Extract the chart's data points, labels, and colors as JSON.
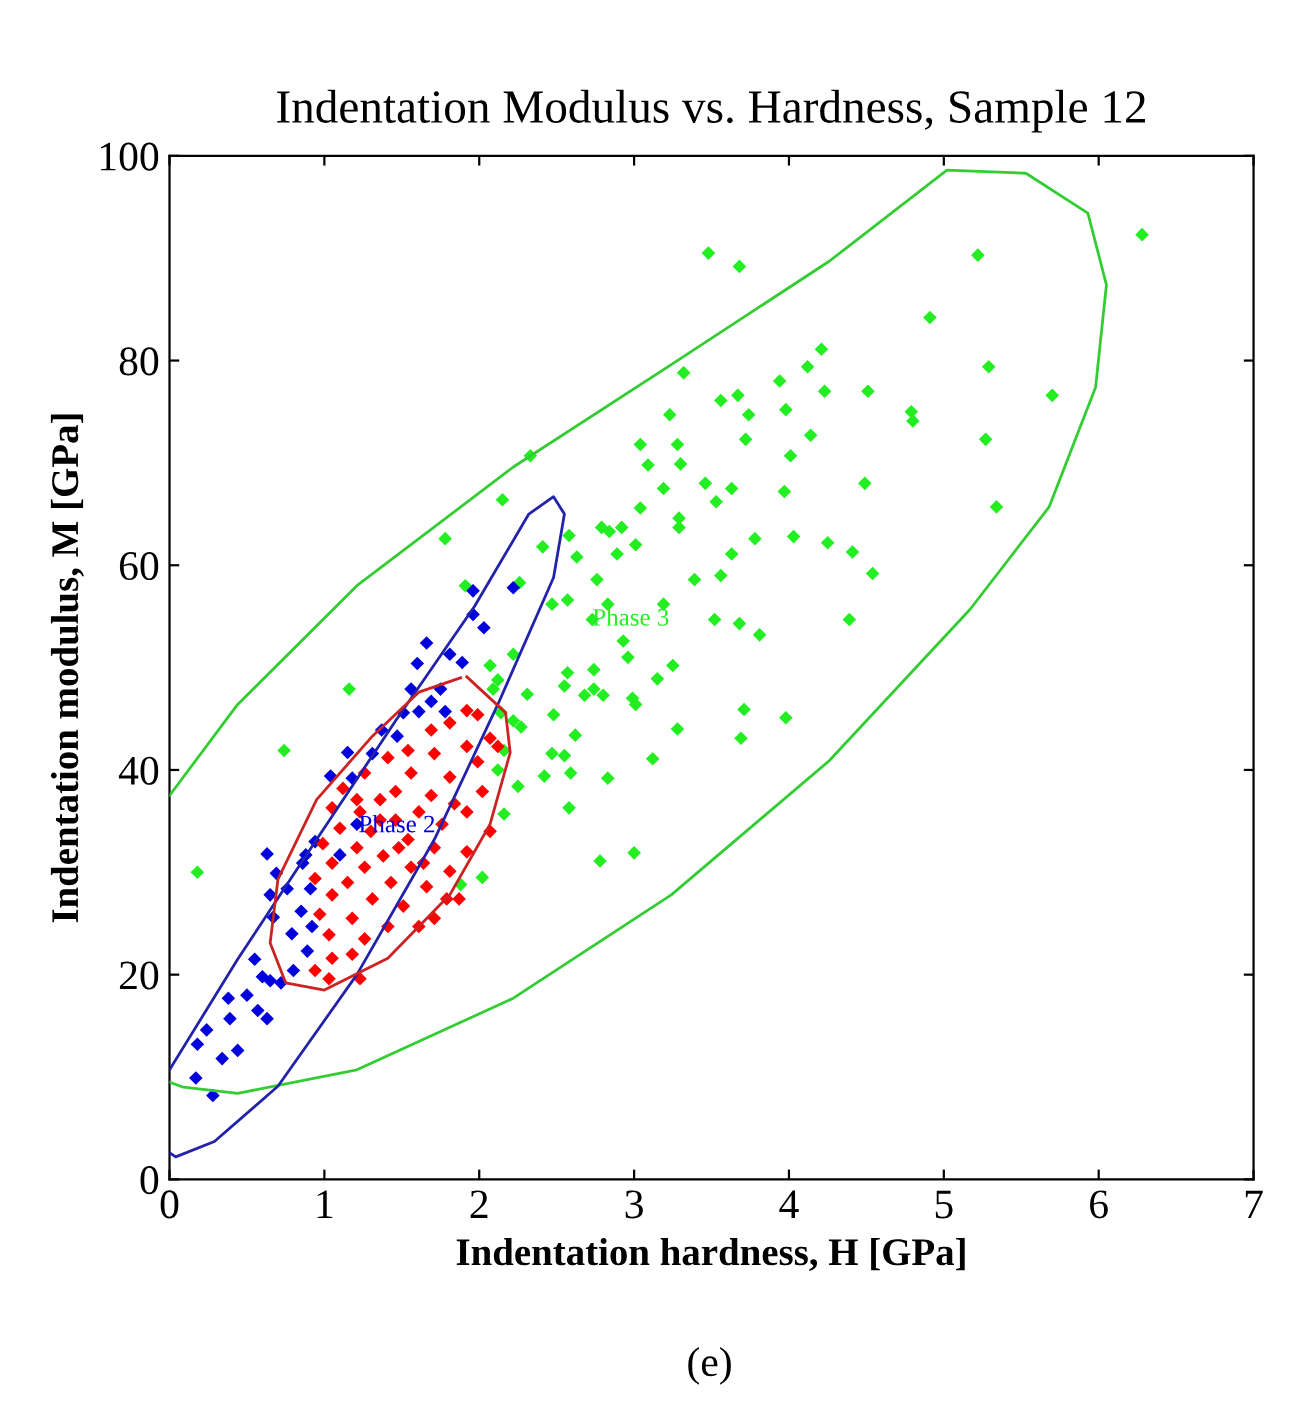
{
  "chart_data": {
    "type": "scatter",
    "title": "Indentation Modulus vs. Hardness, Sample 12",
    "xlabel": "Indentation hardness, H [GPa]",
    "ylabel": "Indentation modulus, M [GPa]",
    "xlim": [
      0,
      7
    ],
    "xticks": [
      0,
      1,
      2,
      3,
      4,
      5,
      6,
      7
    ],
    "ylim": [
      0,
      100
    ],
    "yticks": [
      0,
      20,
      40,
      60,
      80,
      100
    ],
    "grid": false,
    "legend": false,
    "marker": "diamond",
    "series": [
      {
        "color": "#22ee22",
        "x": [
          6.28,
          5.22,
          3.48,
          3.68,
          4.91,
          5.29,
          5.7,
          5.27,
          5.34,
          3.32,
          3.94,
          4.12,
          4.21,
          4.23,
          4.51,
          3.56,
          3.67,
          3.74,
          3.23,
          3.98,
          4.79,
          4.8,
          3.72,
          3.28,
          3.04,
          3.09,
          3.3,
          4.01,
          4.14,
          2.33,
          3.46,
          3.19,
          3.63,
          3.97,
          4.49,
          3.53,
          3.04,
          2.15,
          3.29,
          3.29,
          2.41,
          2.58,
          2.79,
          2.84,
          2.92,
          3.01,
          4.03,
          4.25,
          4.41,
          3.78,
          3.63,
          2.89,
          2.63,
          4.54,
          3.56,
          3.39,
          2.76,
          2.26,
          1.91,
          2.47,
          2.57,
          3.19,
          2.83,
          3.68,
          4.39,
          3.52,
          2.73,
          3.81,
          2.93,
          2.22,
          2.07,
          2.57,
          2.74,
          2.96,
          3.25,
          2.31,
          2.55,
          2.74,
          2.99,
          3.01,
          3.15,
          2.68,
          2.8,
          3.71,
          3.98,
          3.28,
          3.69,
          2.27,
          2.48,
          2.14,
          2.62,
          2.55,
          2.47,
          3.12,
          2.42,
          2.59,
          2.83,
          2.25,
          2.58,
          2.16,
          2.78,
          3.0,
          2.02,
          1.88,
          0.74,
          1.16,
          1.78,
          0.18,
          2.12,
          2.09,
          2.22,
          2.16,
          2.12
        ],
        "values": [
          92.3,
          90.3,
          90.5,
          89.2,
          84.2,
          79.4,
          76.6,
          72.3,
          65.7,
          78.8,
          78.0,
          79.4,
          81.1,
          77.0,
          77.0,
          76.1,
          76.6,
          74.7,
          74.7,
          75.2,
          75.0,
          74.1,
          72.3,
          71.8,
          71.8,
          69.8,
          69.9,
          70.7,
          72.7,
          70.7,
          68.0,
          67.5,
          67.5,
          67.2,
          68.0,
          66.2,
          65.6,
          66.4,
          64.6,
          63.7,
          61.8,
          62.9,
          63.7,
          63.3,
          63.7,
          62.0,
          62.8,
          62.2,
          61.3,
          62.6,
          61.1,
          61.1,
          60.8,
          59.2,
          59.0,
          58.6,
          58.6,
          58.3,
          58.0,
          56.2,
          56.6,
          56.2,
          56.2,
          54.3,
          54.7,
          54.7,
          54.7,
          53.2,
          52.6,
          51.3,
          50.2,
          49.5,
          49.8,
          51.0,
          50.2,
          47.4,
          48.2,
          47.9,
          47.0,
          46.4,
          48.9,
          47.3,
          47.3,
          45.9,
          45.1,
          44.0,
          43.1,
          44.2,
          45.4,
          45.6,
          43.4,
          41.4,
          41.6,
          41.1,
          39.4,
          39.7,
          39.2,
          38.4,
          36.3,
          35.7,
          31.1,
          31.9,
          29.5,
          28.8,
          41.9,
          47.9,
          62.6,
          30.0,
          48.8,
          47.9,
          44.8,
          41.9,
          40.0
        ]
      },
      {
        "color": "#0000dd",
        "x": [
          2.22,
          1.96,
          1.96,
          2.03,
          1.66,
          1.6,
          1.81,
          1.89,
          1.75,
          1.69,
          1.78,
          1.61,
          1.51,
          1.37,
          1.47,
          1.31,
          1.15,
          1.04,
          1.18,
          0.94,
          0.86,
          0.69,
          0.63,
          0.65,
          0.76,
          0.91,
          0.85,
          0.67,
          0.92,
          0.79,
          0.89,
          0.8,
          0.72,
          0.55,
          0.6,
          0.65,
          0.5,
          0.38,
          0.57,
          0.63,
          0.39,
          0.24,
          0.18,
          0.44,
          0.34,
          0.17,
          0.28,
          1.1,
          1.21,
          1.56,
          0.88
        ],
        "values": [
          57.8,
          57.5,
          55.2,
          53.9,
          52.4,
          50.4,
          51.3,
          50.5,
          47.9,
          46.7,
          45.7,
          45.7,
          45.6,
          43.9,
          43.3,
          41.6,
          41.7,
          39.4,
          39.2,
          33.0,
          30.9,
          29.9,
          31.8,
          27.8,
          28.4,
          28.4,
          26.2,
          25.6,
          24.7,
          24.0,
          22.3,
          20.4,
          19.2,
          21.5,
          19.8,
          19.4,
          18.0,
          17.7,
          16.5,
          15.7,
          15.7,
          14.6,
          13.2,
          12.6,
          11.8,
          9.9,
          8.2,
          31.7,
          34.7,
          47.9,
          31.7
        ]
      },
      {
        "color": "#ff0000",
        "x": [
          1.92,
          1.99,
          1.81,
          1.69,
          2.07,
          2.12,
          1.92,
          1.54,
          1.71,
          1.41,
          1.99,
          1.26,
          1.56,
          1.81,
          1.12,
          1.46,
          1.69,
          2.02,
          1.36,
          1.05,
          1.23,
          1.61,
          1.92,
          1.46,
          1.76,
          1.1,
          1.3,
          2.07,
          1.54,
          0.99,
          1.21,
          1.71,
          1.92,
          1.38,
          1.05,
          1.26,
          1.56,
          1.81,
          0.94,
          1.15,
          1.43,
          1.66,
          1.05,
          1.31,
          1.87,
          1.51,
          0.97,
          1.18,
          1.71,
          1.41,
          1.61,
          1.03,
          1.26,
          1.05,
          1.18,
          0.94,
          1.03,
          1.23,
          1.79,
          1.64,
          1.36,
          1.48,
          1.21,
          1.84
        ],
        "values": [
          45.8,
          45.4,
          44.6,
          43.9,
          43.1,
          42.3,
          42.3,
          41.9,
          41.6,
          41.2,
          40.8,
          39.7,
          39.7,
          39.3,
          38.2,
          37.9,
          37.5,
          37.9,
          37.1,
          36.3,
          35.9,
          35.9,
          35.9,
          35.1,
          34.7,
          34.3,
          34.0,
          34.0,
          33.2,
          32.8,
          32.4,
          32.4,
          32.0,
          31.6,
          30.9,
          30.5,
          30.5,
          30.1,
          29.4,
          29.0,
          29.0,
          28.6,
          27.8,
          27.4,
          27.4,
          26.7,
          25.9,
          25.5,
          25.5,
          24.7,
          24.7,
          23.9,
          23.5,
          21.6,
          22.0,
          20.4,
          19.6,
          19.6,
          27.4,
          30.9,
          35.1,
          32.4,
          37.1,
          36.7
        ]
      },
      {
        "type": "line",
        "marker": "none",
        "color": "#33cc33",
        "x": [
          0,
          0.44,
          1.21,
          2.22,
          3.24,
          4.26,
          5.02,
          5.53,
          5.93,
          6.05,
          5.98,
          5.68,
          5.17,
          4.26,
          3.24,
          2.22,
          1.21,
          0.44,
          0.09,
          0
        ],
        "values": [
          37.5,
          46.4,
          58.0,
          69.6,
          79.6,
          89.7,
          98.6,
          98.3,
          94.4,
          87.4,
          77.4,
          65.7,
          55.7,
          40.9,
          27.8,
          17.7,
          10.7,
          8.4,
          9.0,
          9.5
        ]
      },
      {
        "type": "line",
        "marker": "none",
        "color": "#2222aa",
        "x": [
          0,
          0.44,
          0.95,
          1.46,
          1.97,
          2.32,
          2.48,
          2.55,
          2.48,
          2.12,
          1.71,
          1.21,
          0.7,
          0.29,
          0.04,
          0
        ],
        "values": [
          10.7,
          21.5,
          33.2,
          44.8,
          56.0,
          65.0,
          66.7,
          65.0,
          58.8,
          46.4,
          33.2,
          20.0,
          9.1,
          3.7,
          2.2,
          2.6
        ]
      },
      {
        "type": "line",
        "marker": "none",
        "color": "#cc2222",
        "x": [
          1.92,
          2.17,
          2.2,
          2.07,
          1.81,
          1.41,
          1.0,
          0.75,
          0.65,
          0.7,
          0.95,
          1.31,
          1.61,
          1.88
        ],
        "values": [
          49.1,
          45.6,
          41.7,
          34.7,
          27.8,
          21.6,
          18.5,
          19.2,
          23.1,
          29.3,
          37.1,
          43.3,
          47.6,
          49.0
        ]
      }
    ],
    "annotations": [
      {
        "text": "Phase 2",
        "x": 1.22,
        "y": 34.5
      },
      {
        "text": "Phase 3",
        "x": 2.73,
        "y": 54.7
      },
      "(e)"
    ]
  }
}
